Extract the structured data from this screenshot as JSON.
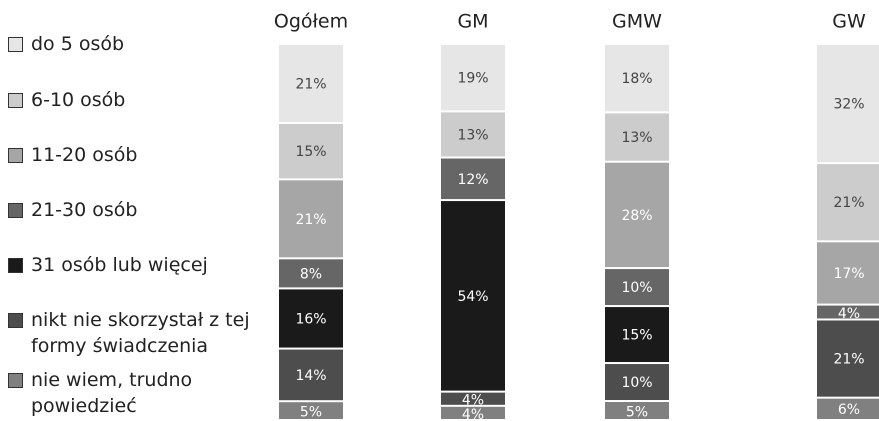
{
  "chart_data": {
    "type": "stacked-bar",
    "categories": [
      "Ogółem",
      "GM",
      "GMW",
      "GW"
    ],
    "series": [
      {
        "name": "do 5 osób",
        "color": "#e6e6e6",
        "values": [
          21,
          19,
          18,
          32
        ],
        "value_labels": [
          "21%",
          "19%",
          "18%",
          "32%"
        ]
      },
      {
        "name": "6-10 osób",
        "color": "#cccccc",
        "values": [
          15,
          13,
          13,
          21
        ],
        "value_labels": [
          "15%",
          "13%",
          "13%",
          "21%"
        ]
      },
      {
        "name": "11-20 osób",
        "color": "#a6a6a6",
        "values": [
          21,
          null,
          28,
          17
        ],
        "value_labels": [
          "21%",
          null,
          "28%",
          "17%"
        ]
      },
      {
        "name": "21-30 osób",
        "color": "#666666",
        "values": [
          8,
          12,
          10,
          4
        ],
        "value_labels": [
          "8%",
          "12%",
          "10%",
          "4%"
        ]
      },
      {
        "name": "31 osób lub więcej",
        "color": "#1a1a1a",
        "values": [
          16,
          54,
          15,
          null
        ],
        "value_labels": [
          "16%",
          "54%",
          "15%",
          null
        ]
      },
      {
        "name": "nikt nie skorzystał z tej formy świadczenia",
        "color": "#4d4d4d",
        "values": [
          14,
          4,
          10,
          21
        ],
        "value_labels": [
          "14%",
          "4%",
          "10%",
          "21%"
        ]
      },
      {
        "name": "nie wiem, trudno powiedzieć",
        "color": "#808080",
        "values": [
          5,
          4,
          5,
          6
        ],
        "value_labels": [
          "5%",
          "4%",
          "5%",
          "6%"
        ]
      }
    ]
  }
}
